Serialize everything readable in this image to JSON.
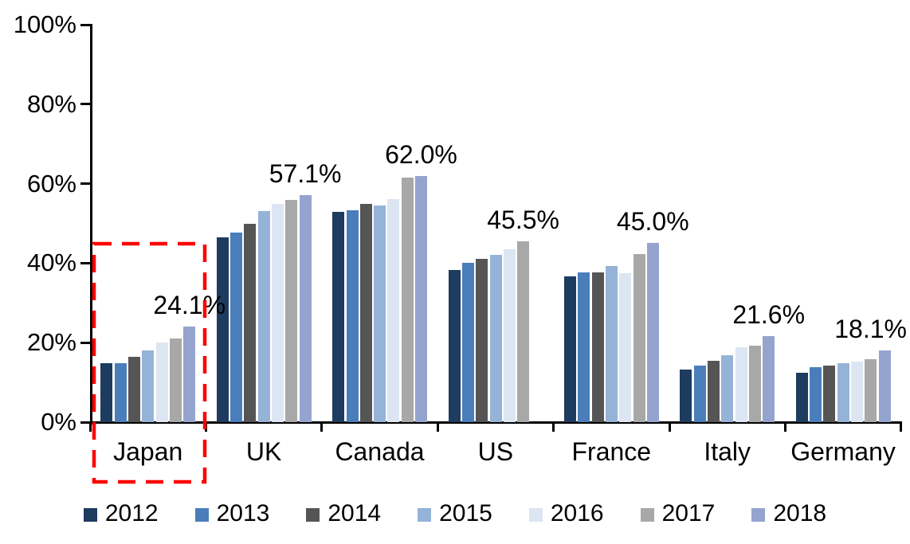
{
  "chart_data": {
    "type": "bar",
    "title": "",
    "xlabel": "",
    "ylabel": "",
    "ylim": [
      0,
      100
    ],
    "grid": false,
    "legend_position": "bottom",
    "categories": [
      "Japan",
      "UK",
      "Canada",
      "US",
      "France",
      "Italy",
      "Germany"
    ],
    "series": [
      {
        "name": "2012",
        "color": "#1E3B60",
        "values": [
          14.8,
          46.4,
          53.0,
          38.3,
          36.6,
          13.3,
          12.5
        ]
      },
      {
        "name": "2013",
        "color": "#4A7EBB",
        "values": [
          14.9,
          47.7,
          53.3,
          40.1,
          37.7,
          14.2,
          13.9
        ]
      },
      {
        "name": "2014",
        "color": "#555555",
        "values": [
          16.5,
          49.9,
          54.9,
          41.0,
          37.6,
          15.4,
          14.3
        ]
      },
      {
        "name": "2015",
        "color": "#95B3D7",
        "values": [
          18.0,
          53.1,
          54.6,
          42.1,
          39.3,
          16.8,
          14.8
        ]
      },
      {
        "name": "2016",
        "color": "#DCE6F2",
        "values": [
          20.0,
          54.9,
          56.1,
          43.5,
          37.4,
          18.9,
          15.3
        ]
      },
      {
        "name": "2017",
        "color": "#A8A8A8",
        "values": [
          21.0,
          55.9,
          61.6,
          45.5,
          42.2,
          19.2,
          15.8
        ]
      },
      {
        "name": "2018",
        "color": "#95A4CE",
        "values": [
          24.1,
          57.1,
          62.0,
          null,
          45.0,
          21.6,
          18.1
        ]
      }
    ],
    "yticks": [
      {
        "value": 0,
        "label": "0%"
      },
      {
        "value": 20,
        "label": "20%"
      },
      {
        "value": 40,
        "label": "40%"
      },
      {
        "value": 60,
        "label": "60%"
      },
      {
        "value": 80,
        "label": "80%"
      },
      {
        "value": 100,
        "label": "100%"
      }
    ],
    "value_labels": [
      {
        "category": "Japan",
        "text": "24.1%"
      },
      {
        "category": "UK",
        "text": "57.1%"
      },
      {
        "category": "Canada",
        "text": "62.0%"
      },
      {
        "category": "US",
        "text": "45.5%"
      },
      {
        "category": "France",
        "text": "45.0%"
      },
      {
        "category": "Italy",
        "text": "21.6%"
      },
      {
        "category": "Germany",
        "text": "18.1%"
      }
    ],
    "highlight": {
      "category": "Japan",
      "style": "red-dashed-rectangle",
      "color": "#FF0000"
    }
  }
}
